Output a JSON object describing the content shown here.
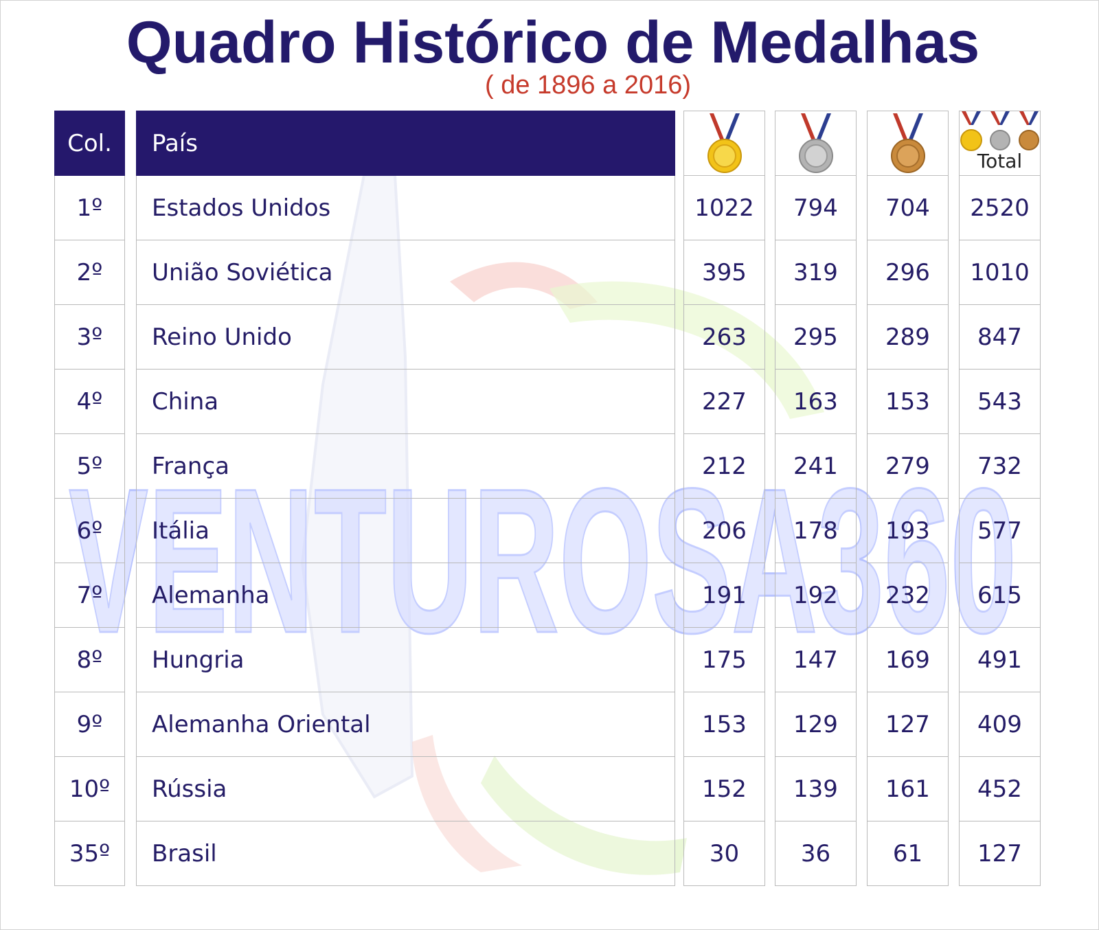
{
  "title": "Quadro Histórico de Medalhas",
  "subtitle": "( de 1896 a 2016)",
  "watermark_text": "VENTUROSA360",
  "headers": {
    "rank": "Col.",
    "country": "País",
    "gold_icon": "gold-medal-icon",
    "silver_icon": "silver-medal-icon",
    "bronze_icon": "bronze-medal-icon",
    "total": "Total"
  },
  "colors": {
    "header_bg": "#25186c",
    "title": "#231a6b",
    "subtitle": "#c63a2b",
    "gold": "#f2c318",
    "silver": "#b3b3b3",
    "bronze": "#c98a3c"
  },
  "rows": [
    {
      "rank": "1º",
      "country": "Estados Unidos",
      "gold": "1022",
      "silver": "794",
      "bronze": "704",
      "total": "2520"
    },
    {
      "rank": "2º",
      "country": "União Soviética",
      "gold": "395",
      "silver": "319",
      "bronze": "296",
      "total": "1010"
    },
    {
      "rank": "3º",
      "country": "Reino Unido",
      "gold": "263",
      "silver": "295",
      "bronze": "289",
      "total": "847"
    },
    {
      "rank": "4º",
      "country": "China",
      "gold": "227",
      "silver": "163",
      "bronze": "153",
      "total": "543"
    },
    {
      "rank": "5º",
      "country": "França",
      "gold": "212",
      "silver": "241",
      "bronze": "279",
      "total": "732"
    },
    {
      "rank": "6º",
      "country": "Itália",
      "gold": "206",
      "silver": "178",
      "bronze": "193",
      "total": "577"
    },
    {
      "rank": "7º",
      "country": "Alemanha",
      "gold": "191",
      "silver": "192",
      "bronze": "232",
      "total": "615"
    },
    {
      "rank": "8º",
      "country": "Hungria",
      "gold": "175",
      "silver": "147",
      "bronze": "169",
      "total": "491"
    },
    {
      "rank": "9º",
      "country": "Alemanha Oriental",
      "gold": "153",
      "silver": "129",
      "bronze": "127",
      "total": "409"
    },
    {
      "rank": "10º",
      "country": "Rússia",
      "gold": "152",
      "silver": "139",
      "bronze": "161",
      "total": "452"
    },
    {
      "rank": "35º",
      "country": "Brasil",
      "gold": "30",
      "silver": "36",
      "bronze": "61",
      "total": "127"
    }
  ]
}
